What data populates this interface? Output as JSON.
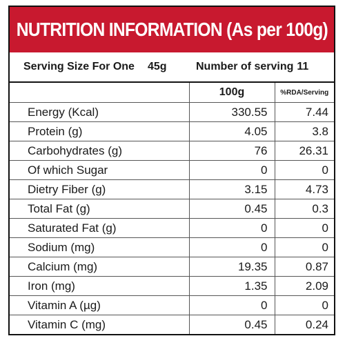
{
  "header": {
    "title": "NUTRITION INFORMATION (As per 100g)"
  },
  "serving": {
    "size_label": "Serving Size For One",
    "size_value": "45g",
    "count_label": "Number of serving",
    "count_value": "11"
  },
  "table": {
    "columns": [
      "",
      "100g",
      "%RDA/Serving"
    ],
    "rows": [
      {
        "name": "Energy (Kcal)",
        "per100g": "330.55",
        "rda": "7.44"
      },
      {
        "name": "Protein (g)",
        "per100g": "4.05",
        "rda": "3.8"
      },
      {
        "name": "Carbohydrates (g)",
        "per100g": "76",
        "rda": "26.31"
      },
      {
        "name": "Of which Sugar",
        "per100g": "0",
        "rda": "0"
      },
      {
        "name": "Dietry Fiber (g)",
        "per100g": "3.15",
        "rda": "4.73"
      },
      {
        "name": "Total Fat (g)",
        "per100g": "0.45",
        "rda": "0.3"
      },
      {
        "name": "Saturated Fat (g)",
        "per100g": "0",
        "rda": "0"
      },
      {
        "name": "Sodium (mg)",
        "per100g": "0",
        "rda": "0"
      },
      {
        "name": "Calcium (mg)",
        "per100g": "19.35",
        "rda": "0.87"
      },
      {
        "name": "Iron (mg)",
        "per100g": "1.35",
        "rda": "2.09"
      },
      {
        "name": "Vitamin A (µg)",
        "per100g": "0",
        "rda": "0"
      },
      {
        "name": "Vitamin C (mg)",
        "per100g": "0.45",
        "rda": "0.24"
      }
    ]
  },
  "colors": {
    "header_bg": "#c8192f",
    "header_text": "#ffffff",
    "border": "#111111"
  }
}
